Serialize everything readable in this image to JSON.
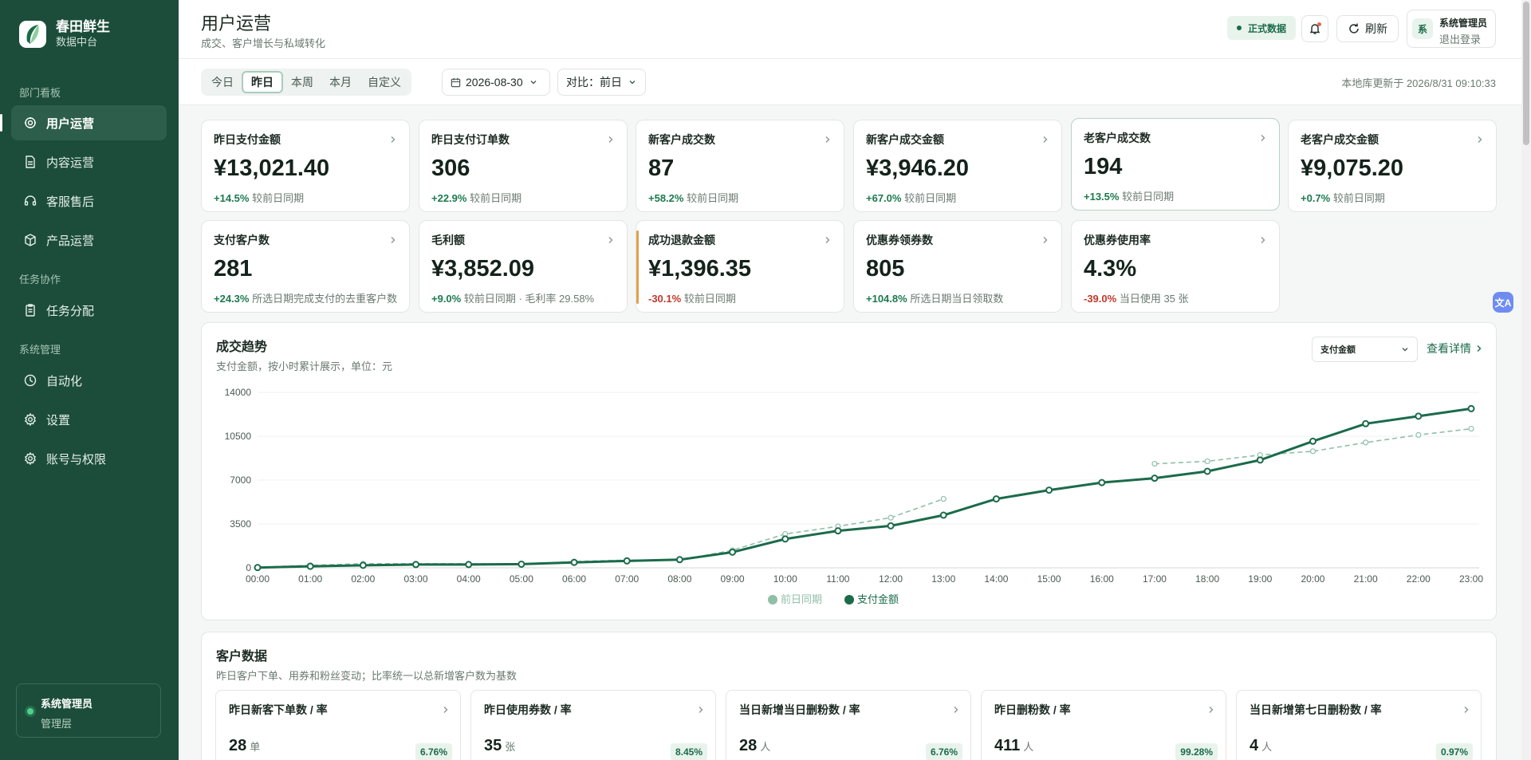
{
  "brand": {
    "name": "春田鲜生",
    "subtitle": "数据中台"
  },
  "nav": {
    "sections": [
      {
        "title": "部门看板"
      },
      {
        "title": "任务协作"
      },
      {
        "title": "系统管理"
      }
    ],
    "items": [
      {
        "label": "用户运营",
        "icon": "users-icon",
        "active": true
      },
      {
        "label": "内容运营",
        "icon": "document-icon"
      },
      {
        "label": "客服售后",
        "icon": "headset-icon"
      },
      {
        "label": "产品运营",
        "icon": "box-icon"
      },
      {
        "label": "任务分配",
        "icon": "clipboard-icon"
      },
      {
        "label": "自动化",
        "icon": "clock-icon"
      },
      {
        "label": "设置",
        "icon": "gear-icon"
      },
      {
        "label": "账号与权限",
        "icon": "shield-icon"
      }
    ]
  },
  "sidebar_user": {
    "name": "系统管理员",
    "role": "管理层"
  },
  "header": {
    "title": "用户运营",
    "subtitle": "成交、客户增长与私域转化",
    "data_badge": "正式数据",
    "refresh_label": "刷新",
    "account_avatar": "系",
    "account_name": "系统管理员",
    "logout_label": "退出登录"
  },
  "toolbar": {
    "ranges": [
      "今日",
      "昨日",
      "本周",
      "本月",
      "自定义"
    ],
    "active_range": "昨日",
    "date": "2026-08-30",
    "compare": "对比：前日",
    "updated": "本地库更新于 2026/8/31 09:10:33"
  },
  "kpis": [
    {
      "label": "昨日支付金额",
      "value": "¥13,021.40",
      "change": "+14.5%",
      "dir": "up",
      "note": "较前日同期"
    },
    {
      "label": "昨日支付订单数",
      "value": "306",
      "change": "+22.9%",
      "dir": "up",
      "note": "较前日同期"
    },
    {
      "label": "新客户成交数",
      "value": "87",
      "change": "+58.2%",
      "dir": "up",
      "note": "较前日同期"
    },
    {
      "label": "新客户成交金额",
      "value": "¥3,946.20",
      "change": "+67.0%",
      "dir": "up",
      "note": "较前日同期"
    },
    {
      "label": "老客户成交数",
      "value": "194",
      "change": "+13.5%",
      "dir": "up",
      "note": "较前日同期"
    },
    {
      "label": "老客户成交金额",
      "value": "¥9,075.20",
      "change": "+0.7%",
      "dir": "up",
      "note": "较前日同期"
    },
    {
      "label": "支付客户数",
      "value": "281",
      "change": "+24.3%",
      "dir": "up",
      "note": "所选日期完成支付的去重客户数"
    },
    {
      "label": "毛利额",
      "value": "¥3,852.09",
      "change": "+9.0%",
      "dir": "up",
      "note": "较前日同期 · 毛利率 29.58%"
    },
    {
      "label": "成功退款金额",
      "value": "¥1,396.35",
      "change": "-30.1%",
      "dir": "down",
      "note": "较前日同期"
    },
    {
      "label": "优惠券领券数",
      "value": "805",
      "change": "+104.8%",
      "dir": "up",
      "note": "所选日期当日领取数"
    },
    {
      "label": "优惠券使用率",
      "value": "4.3%",
      "change": "-39.0%",
      "dir": "down",
      "note": "当日使用 35 张"
    }
  ],
  "trend": {
    "title": "成交趋势",
    "subtitle": "支付金额，按小时累计展示，单位：元",
    "metric": "支付金额",
    "more_label": "查看详情"
  },
  "chart_data": {
    "type": "line",
    "x": [
      "00:00",
      "01:00",
      "02:00",
      "03:00",
      "04:00",
      "05:00",
      "06:00",
      "07:00",
      "08:00",
      "09:00",
      "10:00",
      "11:00",
      "12:00",
      "13:00",
      "14:00",
      "15:00",
      "16:00",
      "17:00",
      "18:00",
      "19:00",
      "20:00",
      "21:00",
      "22:00",
      "23:00"
    ],
    "series": [
      {
        "name": "前日同期",
        "color": "#8fbfa6",
        "dashed": true,
        "values": [
          50,
          200,
          330,
          330,
          330,
          300,
          500,
          620,
          620,
          1400,
          2700,
          3300,
          4000,
          5500,
          null,
          null,
          null,
          8300,
          8500,
          9000,
          9300,
          10000,
          10600,
          11100
        ]
      },
      {
        "name": "支付金额",
        "color": "#1b6b4a",
        "dashed": false,
        "values": [
          20,
          120,
          200,
          260,
          260,
          290,
          430,
          550,
          650,
          1250,
          2300,
          2950,
          3350,
          4200,
          5500,
          6200,
          6800,
          7150,
          7700,
          8600,
          10100,
          11500,
          12100,
          12700
        ]
      }
    ],
    "yticks": [
      0,
      3500,
      7000,
      10500,
      14000
    ],
    "ylim": [
      0,
      14000
    ],
    "grid": true,
    "legend": "bottom-center"
  },
  "customer": {
    "title": "客户数据",
    "subtitle": "昨日客户下单、用券和粉丝变动；比率统一以总新增客户数为基数",
    "cards": [
      {
        "label": "昨日新客下单数 / 率",
        "value": "28",
        "unit": "单",
        "rate": "6.76%"
      },
      {
        "label": "昨日使用券数 / 率",
        "value": "35",
        "unit": "张",
        "rate": "8.45%"
      },
      {
        "label": "当日新增当日删粉数 / 率",
        "value": "28",
        "unit": "人",
        "rate": "6.76%"
      },
      {
        "label": "昨日删粉数 / 率",
        "value": "411",
        "unit": "人",
        "rate": "99.28%"
      },
      {
        "label": "当日新增第七日删粉数 / 率",
        "value": "4",
        "unit": "人",
        "rate": "0.97%"
      }
    ]
  },
  "float_button": "文A"
}
